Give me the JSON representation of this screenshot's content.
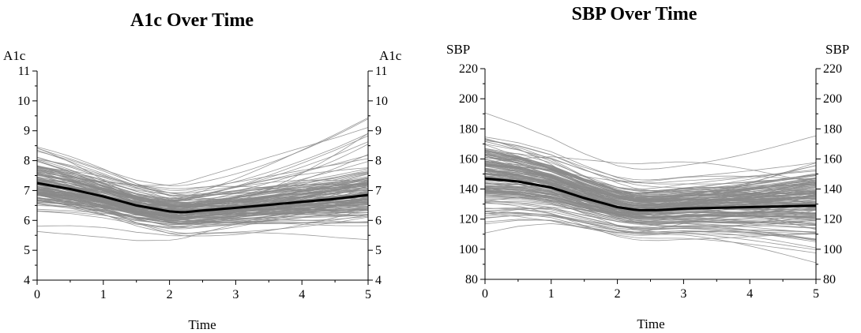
{
  "chart_data": [
    {
      "type": "line",
      "title": "A1c Over Time",
      "xlabel": "Time",
      "ylabel_left": "A1c",
      "ylabel_right": "A1c",
      "xlim": [
        0,
        5
      ],
      "ylim": [
        4,
        11
      ],
      "x_ticks": [
        "0",
        "1",
        "2",
        "3",
        "4",
        "5"
      ],
      "y_ticks": [
        "4",
        "5",
        "6",
        "7",
        "8",
        "9",
        "10",
        "11"
      ],
      "grid": false,
      "individual_lines": {
        "color": "#8a8a8a",
        "count": 160,
        "spread_start": [
          6.0,
          8.7
        ],
        "spread_end": [
          5.6,
          10.8
        ]
      },
      "mean_line": {
        "color": "#000000",
        "x": [
          0,
          0.5,
          1,
          1.5,
          2,
          2.2,
          2.5,
          3,
          3.5,
          4,
          4.5,
          5
        ],
        "y": [
          7.25,
          7.05,
          6.8,
          6.5,
          6.3,
          6.27,
          6.33,
          6.42,
          6.52,
          6.62,
          6.72,
          6.85
        ]
      }
    },
    {
      "type": "line",
      "title": "SBP Over Time",
      "xlabel": "Time",
      "ylabel_left": "SBP",
      "ylabel_right": "SBP",
      "xlim": [
        0,
        5
      ],
      "ylim": [
        80,
        220
      ],
      "x_ticks": [
        "0",
        "1",
        "2",
        "3",
        "4",
        "5"
      ],
      "y_ticks": [
        "80",
        "100",
        "120",
        "140",
        "160",
        "180",
        "200",
        "220"
      ],
      "grid": false,
      "individual_lines": {
        "color": "#8a8a8a",
        "count": 170,
        "spread_start": [
          86,
          207
        ],
        "spread_end": [
          92,
          180
        ]
      },
      "mean_line": {
        "color": "#000000",
        "x": [
          0,
          0.5,
          1,
          1.5,
          2,
          2.3,
          2.6,
          3,
          3.5,
          4,
          4.5,
          5
        ],
        "y": [
          147,
          145,
          141,
          134,
          128,
          126,
          126,
          127,
          127.5,
          128,
          128.5,
          129
        ]
      }
    }
  ]
}
